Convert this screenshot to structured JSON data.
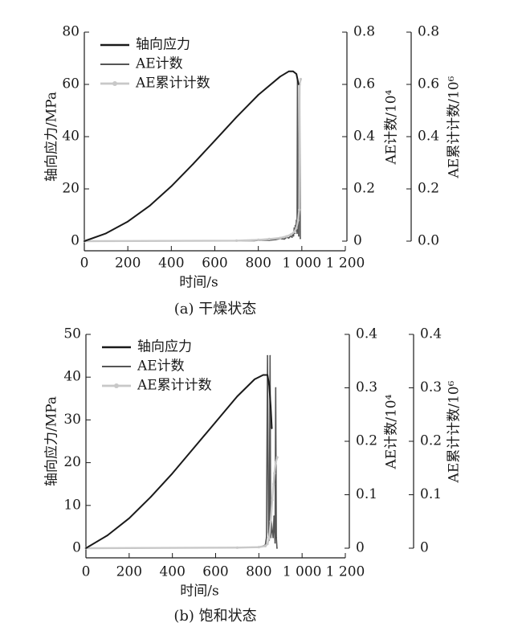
{
  "colors": {
    "stress": "#1a1a1a",
    "ae_count": "#555555",
    "ae_cumulative": "#c8c8c8",
    "axis": "#1a1a1a"
  },
  "chart_data": [
    {
      "type": "line",
      "caption": "(a) 干燥状态",
      "xlabel": "时间/s",
      "ylabel_left": "轴向应力/MPa",
      "ylabel_right1": "AE计数/10⁴",
      "ylabel_right2": "AE累计计数/10⁶",
      "xlim": [
        0,
        1200
      ],
      "xticks": [
        "0",
        "200",
        "400",
        "600",
        "800",
        "1 000",
        "1 200"
      ],
      "ylim_left": [
        0,
        80
      ],
      "yticks_left": [
        "0",
        "20",
        "40",
        "60",
        "80"
      ],
      "ylim_right1": [
        0,
        0.8
      ],
      "yticks_right1": [
        "0",
        "0.2",
        "0.4",
        "0.6",
        "0.8"
      ],
      "ylim_right2": [
        0,
        0.8
      ],
      "yticks_right2": [
        "0.0",
        "0.2",
        "0.4",
        "0.6",
        "0.8"
      ],
      "legend": [
        "轴向应力",
        "AE计数",
        "AE累计计数"
      ],
      "legend_position": "top-left",
      "series": [
        {
          "name": "轴向应力",
          "axis": "left",
          "x": [
            0,
            100,
            200,
            300,
            400,
            500,
            600,
            700,
            800,
            900,
            940,
            960,
            975,
            985
          ],
          "y": [
            0,
            3,
            7.5,
            13.5,
            21,
            29.5,
            38.5,
            47.5,
            56,
            63,
            65,
            65,
            64,
            60
          ]
        },
        {
          "name": "AE计数",
          "axis": "right1",
          "x": [
            0,
            780,
            820,
            850,
            880,
            900,
            920,
            930,
            940,
            950,
            955,
            960,
            962,
            965,
            968,
            970,
            972,
            975,
            978,
            980,
            983,
            986,
            990,
            993
          ],
          "y": [
            0,
            0.002,
            0.004,
            0.003,
            0.006,
            0.01,
            0.008,
            0.015,
            0.012,
            0.02,
            0.015,
            0.03,
            0.02,
            0.05,
            0.03,
            0.06,
            0.04,
            0.08,
            0.03,
            0.62,
            0.05,
            0.02,
            0.6,
            0.01
          ]
        },
        {
          "name": "AE累计计数",
          "axis": "right2",
          "x": [
            0,
            700,
            800,
            850,
            900,
            930,
            950,
            965,
            975,
            983,
            988,
            990,
            995
          ],
          "y": [
            0,
            0.002,
            0.005,
            0.008,
            0.012,
            0.018,
            0.025,
            0.035,
            0.05,
            0.08,
            0.12,
            0.6,
            0.62
          ]
        }
      ]
    },
    {
      "type": "line",
      "caption": "(b) 饱和状态",
      "xlabel": "时间/s",
      "ylabel_left": "轴向应力/MPa",
      "ylabel_right1": "AE计数/10⁴",
      "ylabel_right2": "AE累计计数/10⁶",
      "xlim": [
        0,
        1200
      ],
      "xticks": [
        "0",
        "200",
        "400",
        "600",
        "800",
        "1 000",
        "1 200"
      ],
      "ylim_left": [
        0,
        50
      ],
      "yticks_left": [
        "0",
        "10",
        "20",
        "30",
        "40",
        "50"
      ],
      "ylim_right1": [
        0,
        0.4
      ],
      "yticks_right1": [
        "0",
        "0.1",
        "0.2",
        "0.3",
        "0.4"
      ],
      "ylim_right2": [
        0,
        0.4
      ],
      "yticks_right2": [
        "0",
        "0.1",
        "0.2",
        "0.3",
        "0.4"
      ],
      "legend": [
        "轴向应力",
        "AE计数",
        "AE累计计数"
      ],
      "legend_position": "top-left",
      "series": [
        {
          "name": "轴向应力",
          "axis": "left",
          "x": [
            0,
            100,
            200,
            300,
            400,
            500,
            600,
            700,
            780,
            820,
            840,
            848,
            855,
            860
          ],
          "y": [
            0,
            3,
            7,
            12,
            17.5,
            23.5,
            29.5,
            35.5,
            39.5,
            40.5,
            40.5,
            38,
            33,
            28
          ]
        },
        {
          "name": "AE计数",
          "axis": "right1",
          "x": [
            0,
            700,
            800,
            820,
            830,
            835,
            840,
            845,
            848,
            852,
            855,
            858,
            862,
            866,
            870,
            875,
            878,
            881,
            884
          ],
          "y": [
            0,
            0.001,
            0.002,
            0.004,
            0.006,
            0.02,
            0.36,
            0.03,
            0.015,
            0.36,
            0.02,
            0.05,
            0.03,
            0.02,
            0.06,
            0.01,
            0.3,
            0.02,
            0.0
          ]
        },
        {
          "name": "AE累计计数",
          "axis": "right2",
          "x": [
            0,
            700,
            800,
            830,
            840,
            848,
            855,
            862,
            868,
            872,
            878,
            885
          ],
          "y": [
            0,
            0.001,
            0.002,
            0.004,
            0.008,
            0.02,
            0.05,
            0.09,
            0.12,
            0.14,
            0.16,
            0.17
          ]
        }
      ]
    }
  ]
}
